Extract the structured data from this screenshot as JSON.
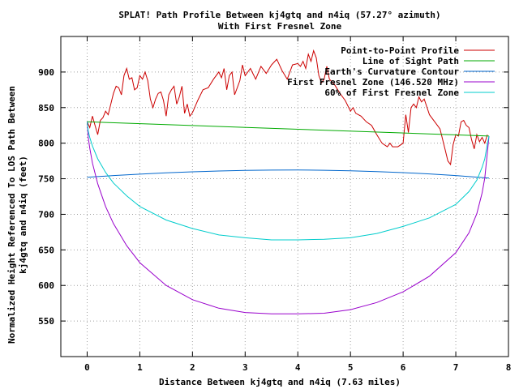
{
  "chart_data": {
    "type": "line",
    "title": "SPLAT! Path Profile Between kj4gtq and n4iq (57.27° azimuth)",
    "subtitle": "With First Fresnel Zone",
    "xlabel": "Distance Between kj4gtq and n4iq (7.63 miles)",
    "ylabel_line1": "Normalized Height Referenced To LOS Path Between",
    "ylabel_line2": "kj4gtq and n4iq (feet)",
    "xlim": [
      -0.5,
      8
    ],
    "ylim": [
      500,
      950
    ],
    "xticks": [
      0,
      1,
      2,
      3,
      4,
      5,
      6,
      7,
      8
    ],
    "yticks": [
      550,
      600,
      650,
      700,
      750,
      800,
      850,
      900
    ],
    "grid": true,
    "legend_position": "top-right",
    "series": [
      {
        "name": "Point-to-Point Profile",
        "color": "#cc0000",
        "x": [
          0,
          0.05,
          0.1,
          0.15,
          0.2,
          0.25,
          0.3,
          0.35,
          0.4,
          0.5,
          0.55,
          0.6,
          0.65,
          0.7,
          0.75,
          0.8,
          0.85,
          0.9,
          0.95,
          1.0,
          1.05,
          1.1,
          1.15,
          1.2,
          1.25,
          1.3,
          1.35,
          1.4,
          1.45,
          1.5,
          1.55,
          1.6,
          1.65,
          1.7,
          1.75,
          1.8,
          1.85,
          1.9,
          1.95,
          2.0,
          2.1,
          2.2,
          2.3,
          2.4,
          2.5,
          2.55,
          2.6,
          2.65,
          2.7,
          2.75,
          2.8,
          2.85,
          2.9,
          2.95,
          3.0,
          3.1,
          3.2,
          3.3,
          3.4,
          3.5,
          3.6,
          3.7,
          3.8,
          3.9,
          4.0,
          4.05,
          4.1,
          4.15,
          4.2,
          4.25,
          4.3,
          4.35,
          4.4,
          4.45,
          4.5,
          4.55,
          4.6,
          4.7,
          4.8,
          4.9,
          5.0,
          5.05,
          5.1,
          5.2,
          5.3,
          5.4,
          5.5,
          5.6,
          5.7,
          5.75,
          5.8,
          5.9,
          6.0,
          6.05,
          6.1,
          6.15,
          6.2,
          6.25,
          6.3,
          6.35,
          6.4,
          6.5,
          6.6,
          6.7,
          6.8,
          6.85,
          6.9,
          6.95,
          7.0,
          7.05,
          7.1,
          7.15,
          7.2,
          7.25,
          7.3,
          7.35,
          7.4,
          7.45,
          7.5,
          7.55,
          7.6
        ],
        "y": [
          830,
          822,
          838,
          825,
          812,
          832,
          836,
          845,
          840,
          870,
          880,
          878,
          868,
          895,
          905,
          890,
          892,
          875,
          878,
          895,
          890,
          900,
          888,
          862,
          850,
          862,
          870,
          872,
          860,
          838,
          868,
          875,
          880,
          855,
          865,
          880,
          842,
          855,
          838,
          843,
          860,
          875,
          878,
          890,
          900,
          892,
          905,
          875,
          895,
          900,
          868,
          878,
          888,
          910,
          895,
          905,
          890,
          908,
          898,
          910,
          918,
          902,
          890,
          910,
          912,
          908,
          915,
          905,
          925,
          915,
          930,
          920,
          895,
          885,
          890,
          908,
          890,
          882,
          870,
          860,
          845,
          850,
          842,
          838,
          830,
          825,
          812,
          800,
          795,
          800,
          795,
          795,
          800,
          840,
          815,
          850,
          855,
          850,
          865,
          858,
          862,
          840,
          830,
          820,
          790,
          775,
          770,
          798,
          812,
          810,
          830,
          832,
          825,
          822,
          805,
          792,
          812,
          802,
          808,
          800,
          812
        ]
      },
      {
        "name": "Line of Sight Path",
        "color": "#00aa00",
        "x": [
          0,
          7.63
        ],
        "y": [
          830,
          810
        ]
      },
      {
        "name": "Earth's Curvature Contour",
        "color": "#0066cc",
        "x": [
          0,
          0.5,
          1,
          1.5,
          2,
          2.5,
          3,
          3.5,
          4,
          4.5,
          5,
          5.5,
          6,
          6.5,
          7,
          7.63
        ],
        "y": [
          752,
          754.5,
          756.5,
          758.3,
          759.8,
          760.9,
          761.7,
          762.1,
          762.2,
          761.9,
          761.2,
          760.1,
          758.6,
          756.8,
          754.5,
          751
        ]
      },
      {
        "name": "First Fresnel Zone (146.520 MHz)",
        "color": "#9900cc",
        "x": [
          0,
          0.02,
          0.05,
          0.1,
          0.2,
          0.35,
          0.5,
          0.75,
          1,
          1.5,
          2,
          2.5,
          3,
          3.5,
          4,
          4.5,
          5,
          5.5,
          6,
          6.5,
          7,
          7.25,
          7.4,
          7.5,
          7.55,
          7.6,
          7.63
        ],
        "y": [
          830,
          808,
          793,
          772,
          743,
          711,
          687,
          656,
          632,
          600,
          580,
          568,
          562,
          560,
          560,
          561,
          566,
          576,
          591,
          613,
          646,
          674,
          701,
          730,
          751,
          787,
          810
        ]
      },
      {
        "name": "60% of First Fresnel Zone",
        "color": "#00cccc",
        "x": [
          0,
          0.02,
          0.05,
          0.1,
          0.2,
          0.35,
          0.5,
          0.75,
          1,
          1.5,
          2,
          2.5,
          3,
          3.5,
          4,
          4.5,
          5,
          5.5,
          6,
          6.5,
          7,
          7.25,
          7.4,
          7.5,
          7.55,
          7.6,
          7.63
        ],
        "y": [
          830,
          817,
          808,
          796,
          778,
          759,
          744,
          726,
          711,
          692,
          680,
          671,
          667,
          664,
          664,
          665,
          667,
          673,
          683,
          695,
          714,
          732,
          748,
          766,
          778,
          799,
          810
        ]
      }
    ]
  }
}
